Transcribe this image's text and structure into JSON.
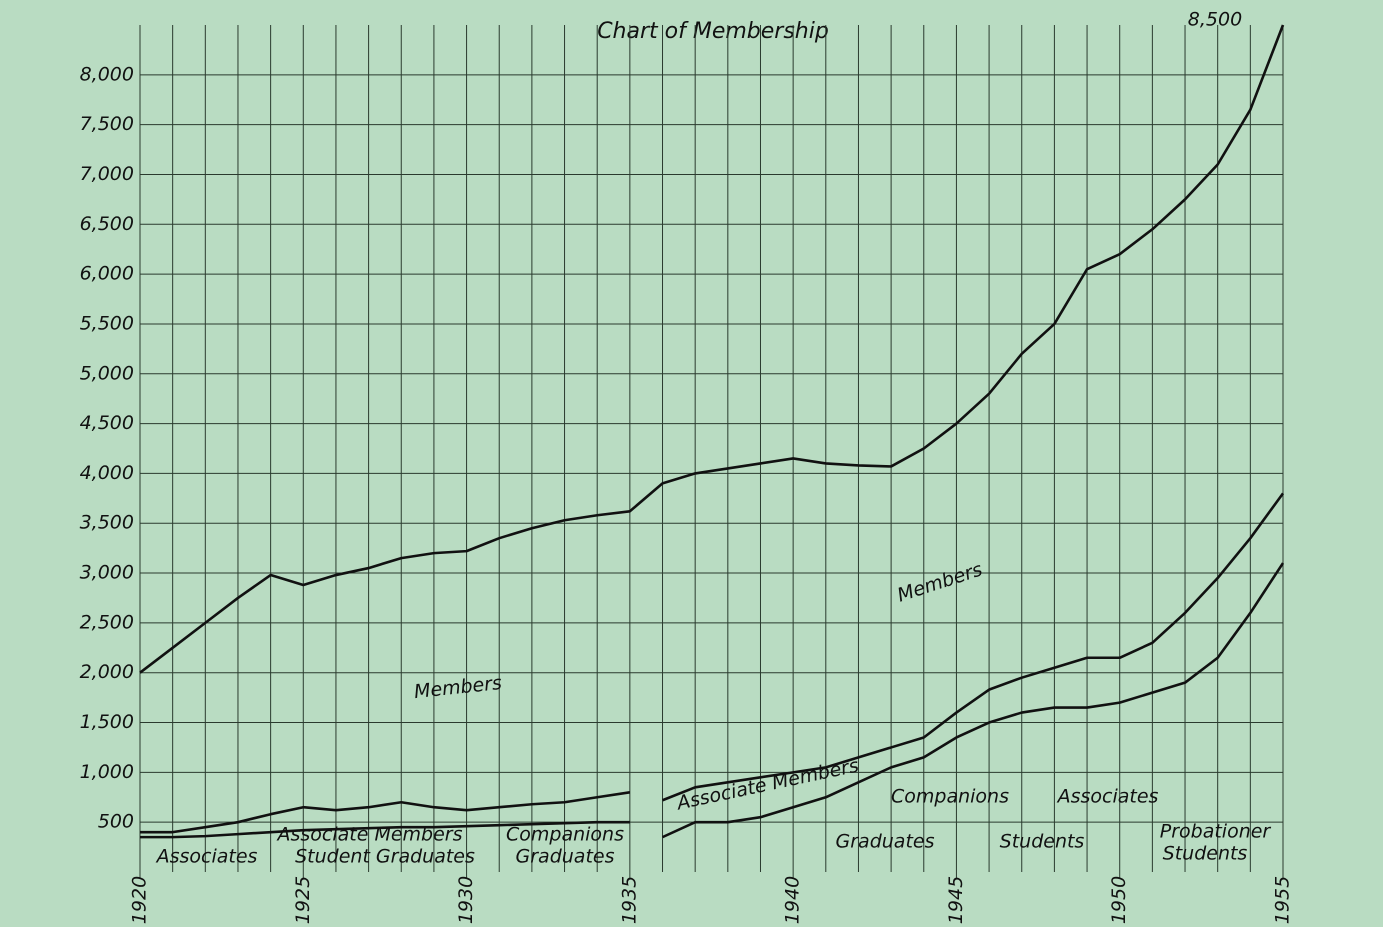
{
  "chart_data": {
    "type": "line",
    "title": "Chart of Membership",
    "x": [
      1920,
      1921,
      1922,
      1923,
      1924,
      1925,
      1926,
      1927,
      1928,
      1929,
      1930,
      1931,
      1932,
      1933,
      1934,
      1935,
      1936,
      1937,
      1938,
      1939,
      1940,
      1941,
      1942,
      1943,
      1944,
      1945,
      1946,
      1947,
      1948,
      1949,
      1950,
      1951,
      1952,
      1953,
      1954,
      1955
    ],
    "xlim": [
      1920,
      1955
    ],
    "xticks": [
      1920,
      1925,
      1930,
      1935,
      1940,
      1945,
      1950,
      1955
    ],
    "ylim": [
      0,
      8500
    ],
    "yticks": [
      {
        "value": 500,
        "label": "500"
      },
      {
        "value": 1000,
        "label": "1,000"
      },
      {
        "value": 1500,
        "label": "1,500"
      },
      {
        "value": 2000,
        "label": "2,000"
      },
      {
        "value": 2500,
        "label": "2,500"
      },
      {
        "value": 3000,
        "label": "3,000"
      },
      {
        "value": 3500,
        "label": "3,500"
      },
      {
        "value": 4000,
        "label": "4,000"
      },
      {
        "value": 4500,
        "label": "4,500"
      },
      {
        "value": 5000,
        "label": "5,000"
      },
      {
        "value": 5500,
        "label": "5,500"
      },
      {
        "value": 6000,
        "label": "6,000"
      },
      {
        "value": 6500,
        "label": "6,500"
      },
      {
        "value": 7000,
        "label": "7,000"
      },
      {
        "value": 7500,
        "label": "7,500"
      },
      {
        "value": 8000,
        "label": "8,000"
      }
    ],
    "grid": true,
    "series": [
      {
        "color": "#111111",
        "values": [
          2000,
          2250,
          2500,
          2750,
          2980,
          2880,
          2980,
          3050,
          3150,
          3200,
          3220,
          3350,
          3450,
          3530,
          3580,
          3620,
          3900,
          4000,
          4050,
          4100,
          4150,
          4100,
          4080,
          4070,
          4250,
          4500,
          4800,
          5200,
          5500,
          6050,
          6200,
          6450,
          6750,
          7100,
          7650,
          8500
        ]
      },
      {
        "color": "#111111",
        "values": [
          400,
          400,
          450,
          500,
          580,
          650,
          620,
          650,
          700,
          650,
          620,
          650,
          680,
          700,
          750,
          800,
          null,
          null,
          null,
          null,
          null,
          null,
          null,
          null,
          null,
          null,
          null,
          null,
          null,
          null,
          null,
          null,
          null,
          null,
          null,
          null
        ]
      },
      {
        "color": "#111111",
        "values": [
          350,
          350,
          360,
          380,
          400,
          420,
          430,
          440,
          450,
          450,
          460,
          470,
          480,
          490,
          500,
          500,
          null,
          null,
          null,
          null,
          null,
          null,
          null,
          null,
          null,
          null,
          null,
          null,
          null,
          null,
          null,
          null,
          null,
          null,
          null,
          null
        ]
      },
      {
        "color": "#111111",
        "values": [
          null,
          null,
          null,
          null,
          null,
          null,
          null,
          null,
          null,
          null,
          null,
          null,
          null,
          null,
          null,
          null,
          720,
          850,
          900,
          950,
          1000,
          1050,
          1150,
          1250,
          1350,
          1600,
          1830,
          1950,
          2050,
          2150,
          2150,
          2300,
          2600,
          2950,
          3350,
          3800
        ]
      },
      {
        "color": "#111111",
        "values": [
          null,
          null,
          null,
          null,
          null,
          null,
          null,
          null,
          null,
          null,
          null,
          null,
          null,
          null,
          null,
          null,
          350,
          500,
          500,
          550,
          650,
          750,
          900,
          1050,
          1150,
          1350,
          1500,
          1600,
          1650,
          1650,
          1700,
          1800,
          1900,
          2150,
          2600,
          3100
        ]
      }
    ],
    "annotations": [
      "8,500",
      "Members",
      "Members",
      "Associate Members",
      "Associate Members",
      "Associates",
      "Student Graduates",
      "Companions",
      "Graduates",
      "Companions",
      "Associates",
      "Graduates",
      "Students",
      "Probationer",
      "Students"
    ]
  }
}
